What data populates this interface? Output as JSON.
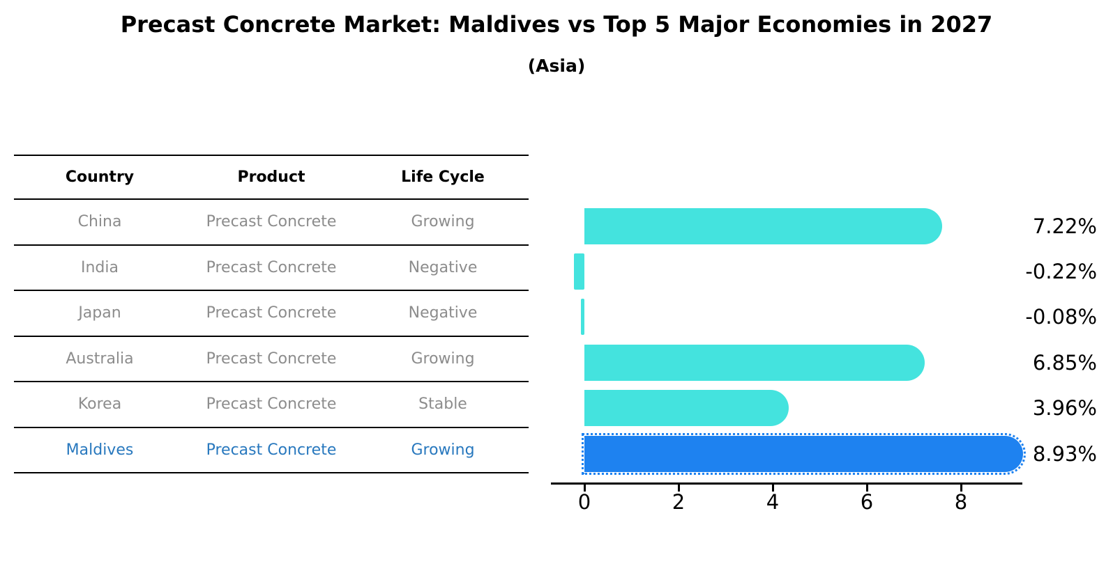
{
  "title": "Precast Concrete Market: Maldives vs Top 5 Major Economies in 2027",
  "subtitle": "(Asia)",
  "table": {
    "headers": [
      "Country",
      "Product",
      "Life Cycle"
    ],
    "rows": [
      {
        "country": "China",
        "product": "Precast Concrete",
        "life_cycle": "Growing",
        "highlight": false
      },
      {
        "country": "India",
        "product": "Precast Concrete",
        "life_cycle": "Negative",
        "highlight": false
      },
      {
        "country": "Japan",
        "product": "Precast Concrete",
        "life_cycle": "Negative",
        "highlight": false
      },
      {
        "country": "Australia",
        "product": "Precast Concrete",
        "life_cycle": "Growing",
        "highlight": false
      },
      {
        "country": "Korea",
        "product": "Precast Concrete",
        "life_cycle": "Stable",
        "highlight": false
      },
      {
        "country": "Maldives",
        "product": "Precast Concrete",
        "life_cycle": "Growing",
        "highlight": true
      }
    ]
  },
  "chart_data": {
    "type": "bar",
    "orientation": "horizontal",
    "title": "Precast Concrete Market: Maldives vs Top 5 Major Economies in 2027 (Asia)",
    "categories": [
      "China",
      "India",
      "Japan",
      "Australia",
      "Korea",
      "Maldives"
    ],
    "values": [
      7.22,
      -0.22,
      -0.08,
      6.85,
      3.96,
      8.93
    ],
    "value_labels": [
      "7.22%",
      "-0.22%",
      "-0.08%",
      "6.85%",
      "3.96%",
      "8.93%"
    ],
    "x_ticks": [
      0,
      2,
      4,
      6,
      8
    ],
    "xlim": [
      -0.7,
      9.3
    ],
    "ylabel": "",
    "xlabel": "",
    "grid": false,
    "legend": "none",
    "highlight_index": 5
  },
  "colors": {
    "bar_default": "#44E3DE",
    "bar_highlight": "#1E82F0",
    "table_row_text": "#8C8C8C",
    "highlight_row_text": "#2878BE",
    "axis": "#000000",
    "background": "#FFFFFF"
  }
}
